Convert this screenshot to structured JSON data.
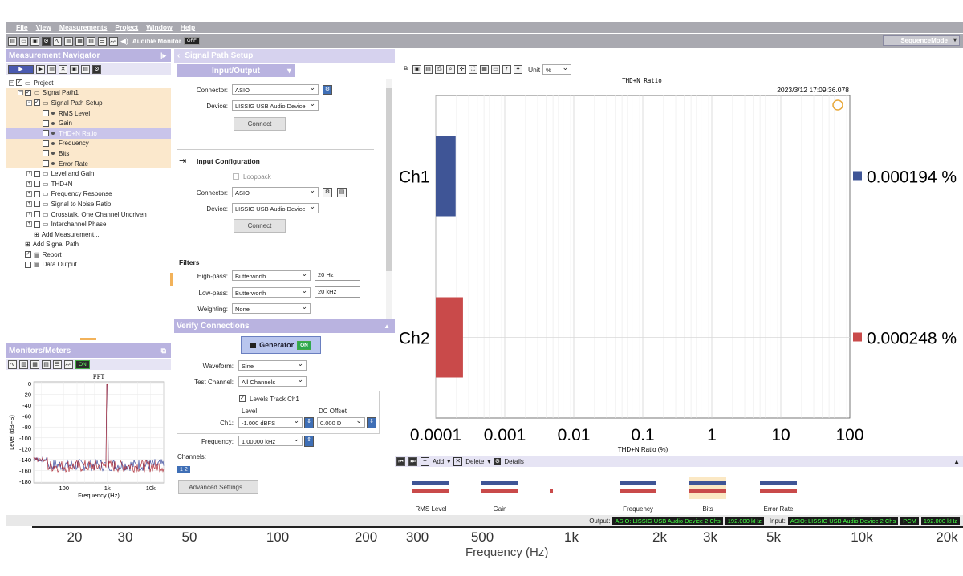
{
  "menu": [
    "File",
    "View",
    "Measurements",
    "Project",
    "Window",
    "Help"
  ],
  "toolbar": {
    "audible_monitor": "Audible Monitor",
    "audible_state": "OFF",
    "mode": "SequenceMode"
  },
  "navigator": {
    "title": "Measurement Navigator",
    "items": [
      {
        "label": "Project",
        "level": 0,
        "kind": "folder"
      },
      {
        "label": "Signal Path1",
        "level": 1,
        "kind": "folder",
        "hl": true
      },
      {
        "label": "Signal Path Setup",
        "level": 2,
        "kind": "folder",
        "hl": true
      },
      {
        "label": "RMS Level",
        "level": 3,
        "kind": "item",
        "hl": true
      },
      {
        "label": "Gain",
        "level": 3,
        "kind": "item",
        "hl": true
      },
      {
        "label": "THD+N Ratio",
        "level": 3,
        "kind": "item",
        "sel": true
      },
      {
        "label": "Frequency",
        "level": 3,
        "kind": "item",
        "hl": true
      },
      {
        "label": "Bits",
        "level": 3,
        "kind": "item",
        "hl": true
      },
      {
        "label": "Error Rate",
        "level": 3,
        "kind": "item",
        "hl": true
      },
      {
        "label": "Level and Gain",
        "level": 2,
        "kind": "folder"
      },
      {
        "label": "THD+N",
        "level": 2,
        "kind": "folder"
      },
      {
        "label": "Frequency Response",
        "level": 2,
        "kind": "folder"
      },
      {
        "label": "Signal to Noise Ratio",
        "level": 2,
        "kind": "folder"
      },
      {
        "label": "Crosstalk, One Channel Undriven",
        "level": 2,
        "kind": "folder"
      },
      {
        "label": "Interchannel Phase",
        "level": 2,
        "kind": "folder"
      },
      {
        "label": "Add Measurement...",
        "level": 2,
        "kind": "add"
      },
      {
        "label": "Add Signal Path",
        "level": 1,
        "kind": "add"
      },
      {
        "label": "Report",
        "level": 1,
        "kind": "doc"
      },
      {
        "label": "Data Output",
        "level": 1,
        "kind": "doc"
      }
    ]
  },
  "monitors": {
    "title": "Monitors/Meters",
    "state": "ON",
    "fft": {
      "title": "FFT",
      "ylabel": "Level (dBFS)",
      "xlabel": "Frequency (Hz)",
      "yticks": [
        "0",
        "-20",
        "-40",
        "-60",
        "-80",
        "-100",
        "-120",
        "-140",
        "-160",
        "-180"
      ],
      "xticks": [
        "100",
        "1k",
        "10k"
      ]
    }
  },
  "signal_path": {
    "title": "Signal Path Setup",
    "tab": "Input/Output",
    "output": {
      "connector_label": "Connector:",
      "connector": "ASIO",
      "device_label": "Device:",
      "device": "LISSIG USB Audio Device",
      "connect": "Connect"
    },
    "input_config": {
      "title": "Input Configuration",
      "loopback": "Loopback",
      "connector_label": "Connector:",
      "connector": "ASIO",
      "device_label": "Device:",
      "device": "LISSIG USB Audio Device",
      "connect": "Connect"
    },
    "filters": {
      "title": "Filters",
      "highpass_label": "High-pass:",
      "highpass": "Butterworth",
      "highpass_value": "20 Hz",
      "lowpass_label": "Low-pass:",
      "lowpass": "Butterworth",
      "lowpass_value": "20 kHz",
      "weighting_label": "Weighting:",
      "weighting": "None"
    },
    "verify": {
      "title": "Verify Connections",
      "generator": "Generator",
      "generator_state": "ON",
      "waveform_label": "Waveform:",
      "waveform": "Sine",
      "test_channel_label": "Test Channel:",
      "test_channel": "All Channels",
      "levels_track": "Levels Track Ch1",
      "level_hdr": "Level",
      "dc_hdr": "DC Offset",
      "ch1_label": "Ch1:",
      "ch1_level": "-1.000 dBFS",
      "ch1_dc": "0.000 D",
      "frequency_label": "Frequency:",
      "frequency": "1.00000 kHz",
      "channels_label": "Channels:",
      "channels_btn": "1 2",
      "advanced": "Advanced Settings..."
    }
  },
  "chart_toolbar": {
    "unit_label": "Unit",
    "unit": "%"
  },
  "chart_data": {
    "type": "bar",
    "orientation": "horizontal",
    "title": "THD+N Ratio",
    "timestamp": "2023/3/12 17:09:36.078",
    "xlabel": "THD+N Ratio (%)",
    "xscale": "log",
    "xlim": [
      0.0001,
      100
    ],
    "xticks": [
      "0.0001",
      "0.001",
      "0.01",
      "0.1",
      "1",
      "10",
      "100"
    ],
    "categories": [
      "Ch1",
      "Ch2"
    ],
    "values": [
      0.000194,
      0.000248
    ],
    "value_labels": [
      "0.000194 %",
      "0.000248 %"
    ],
    "colors": [
      "#3f5596",
      "#c94a4a"
    ]
  },
  "results": {
    "add": "Add",
    "delete": "Delete",
    "details": "Details",
    "thumbs": [
      "RMS Level",
      "Gain",
      "",
      "Frequency",
      "Bits",
      "Error Rate"
    ]
  },
  "status": {
    "output_label": "Output:",
    "output_device": "ASIO: LISSIG USB Audio Device 2 Chs",
    "output_rate": "192.000 kHz",
    "input_label": "Input:",
    "input_device": "ASIO: LISSIG USB Audio Device 2 Chs",
    "input_fmt": "PCM",
    "input_rate": "192.000 kHz"
  },
  "background_axis": {
    "ticks": [
      "20",
      "30",
      "50",
      "100",
      "200",
      "300",
      "500",
      "1k",
      "2k",
      "3k",
      "5k",
      "10k",
      "20k"
    ],
    "label": "Frequency (Hz)"
  }
}
